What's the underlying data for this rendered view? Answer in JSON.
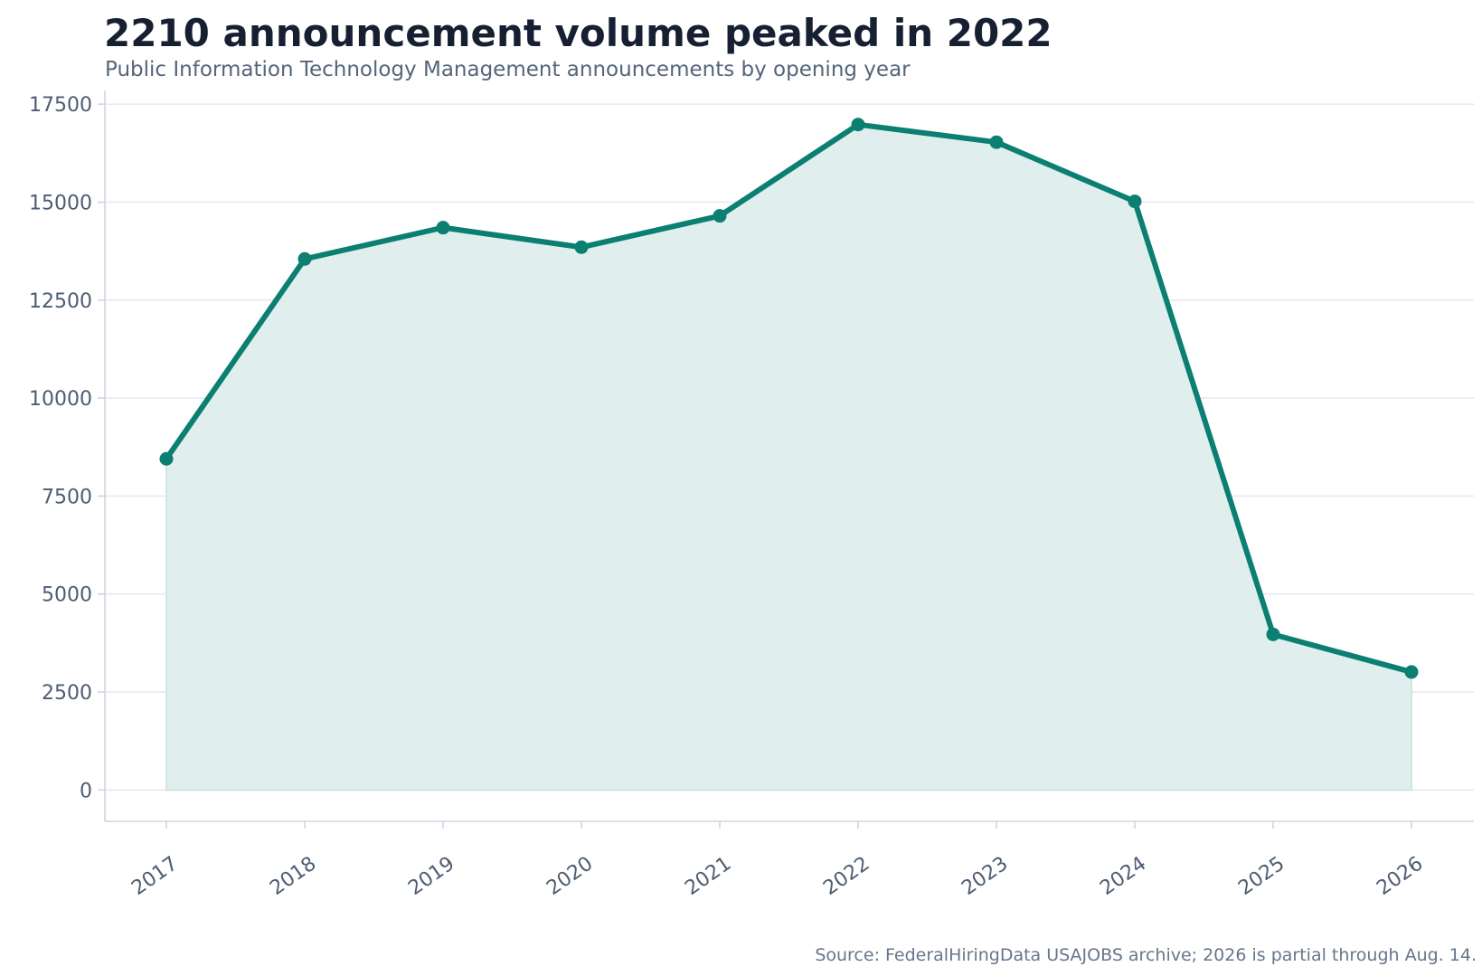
{
  "title": "2210 announcement volume peaked in 2022",
  "subtitle": "Public Information Technology Management announcements by opening year",
  "source": "Source: FederalHiringData USAJOBS archive; 2026 is partial through Aug. 14.",
  "colors": {
    "line": "#0a7f72",
    "fill": "#e0efed",
    "grid": "#e6e9ef",
    "axis": "#cfd6e1",
    "tick_text": "#4d5d72"
  },
  "chart_data": {
    "type": "area",
    "title": "2210 announcement volume peaked in 2022",
    "subtitle": "Public Information Technology Management announcements by opening year",
    "xlabel": "",
    "ylabel": "",
    "categories": [
      "2017",
      "2018",
      "2019",
      "2020",
      "2021",
      "2022",
      "2023",
      "2024",
      "2025",
      "2026"
    ],
    "values": [
      8450,
      13550,
      14350,
      13850,
      14650,
      16980,
      16530,
      15020,
      3970,
      3010
    ],
    "ylim": [
      -800,
      17850
    ],
    "yticks": [
      0,
      2500,
      5000,
      7500,
      10000,
      12500,
      15000,
      17500
    ],
    "grid": "horizontal",
    "legend": "none",
    "markers": true
  }
}
